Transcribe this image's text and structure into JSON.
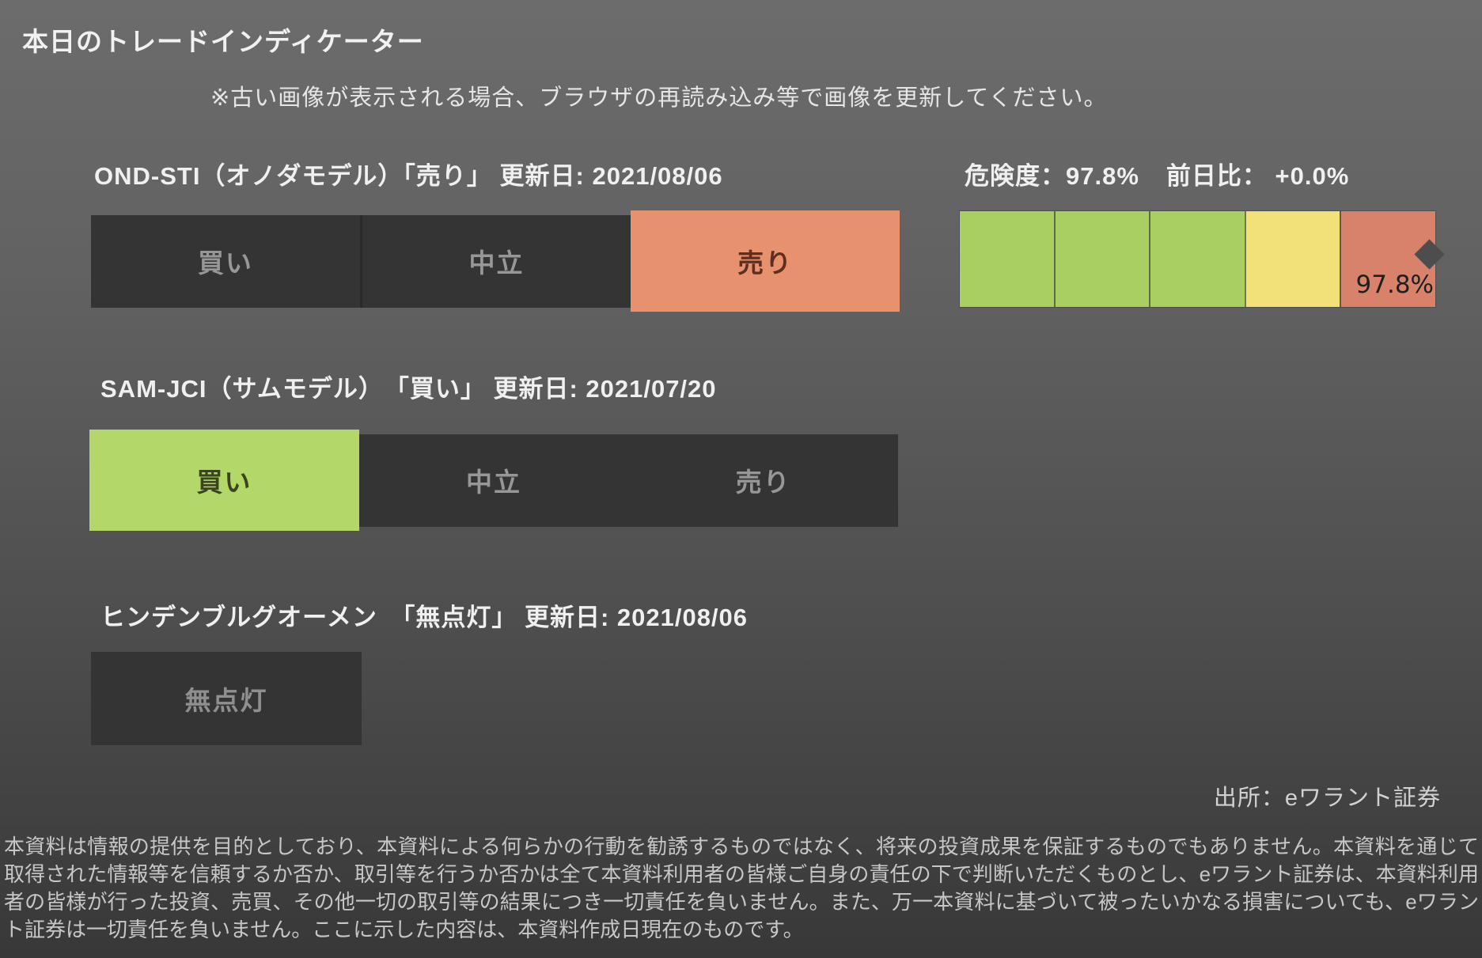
{
  "header": {
    "title": "本日のトレードインディケーター",
    "note": "※古い画像が表示される場合、ブラウザの再読み込み等で画像を更新してください。"
  },
  "stats": {
    "risk_label": "危険度：",
    "risk_value": "97.8%",
    "change_label": "前日比：",
    "change_value": "+0.0%"
  },
  "indicators": [
    {
      "title": "OND-STI（オノダモデル）「売り」 更新日: 2021/08/06",
      "signal": "売り",
      "options": [
        {
          "label": "買い",
          "state": "inactive"
        },
        {
          "label": "中立",
          "state": "inactive"
        },
        {
          "label": "売り",
          "state": "active-sell"
        }
      ]
    },
    {
      "title": "SAM-JCI（サムモデル）　「買い」 更新日: 2021/07/20",
      "signal": "買い",
      "options": [
        {
          "label": "買い",
          "state": "active-buy"
        },
        {
          "label": "中立",
          "state": "inactive"
        },
        {
          "label": "売り",
          "state": "inactive"
        }
      ]
    },
    {
      "title": "ヒンデンブルグオーメン　「無点灯」 更新日: 2021/08/06",
      "signal": "無点灯",
      "options": [
        {
          "label": "無点灯",
          "state": "inactive"
        }
      ]
    }
  ],
  "gauge": {
    "marker_value": "97.8%",
    "marker_color": "#4d4d4d",
    "segments": [
      "#a9ce62",
      "#a9ce62",
      "#a9ce62",
      "#f2e178",
      "#d8826b"
    ]
  },
  "chart_data": {
    "type": "gauge",
    "title": "危険度",
    "value": 97.8,
    "unit": "%",
    "range": [
      0,
      100
    ],
    "change_vs_previous_day": "+0.0%",
    "segments": [
      {
        "span": [
          0,
          20
        ],
        "color": "#a9ce62"
      },
      {
        "span": [
          20,
          40
        ],
        "color": "#a9ce62"
      },
      {
        "span": [
          40,
          60
        ],
        "color": "#a9ce62"
      },
      {
        "span": [
          60,
          80
        ],
        "color": "#f2e178"
      },
      {
        "span": [
          80,
          100
        ],
        "color": "#d8826b"
      }
    ],
    "marker": {
      "value": 97.8,
      "label": "97.8%"
    }
  },
  "colors": {
    "active_sell": "#e8916e",
    "active_buy": "#b3d768",
    "inactive_button": "#343434",
    "gauge_green": "#a9ce62",
    "gauge_yellow": "#f2e178",
    "gauge_orange": "#d8826b"
  },
  "source": "出所：eワラント証券",
  "footer": {
    "disclaimer": "本資料は情報の提供を目的としており、本資料による何らかの行動を勧誘するものではなく、将来の投資成果を保証するものでもありません。本資料を通じて取得された情報等を信頼するか否か、取引等を行うか否かは全て本資料利用者の皆様ご自身の責任の下で判断いただくものとし、eワラント証券は、本資料利用者の皆様が行った投資、売買、その他一切の取引等の結果につき一切責任を負いません。また、万一本資料に基づいて被ったいかなる損害についても、eワラント証券は一切責任を負いません。ここに示した内容は、本資料作成日現在のものです。"
  }
}
